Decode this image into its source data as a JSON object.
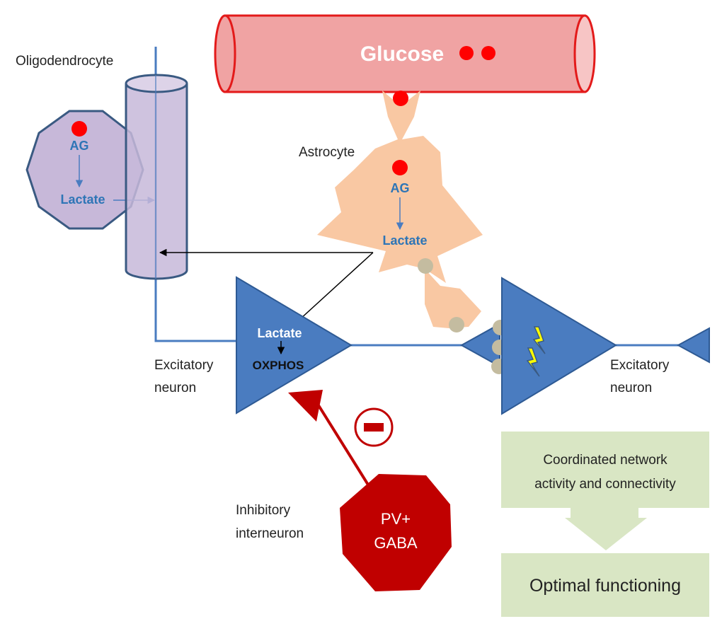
{
  "labels": {
    "glucose": "Glucose",
    "oligodendrocyte": "Oligodendrocyte",
    "astrocyte": "Astrocyte",
    "oligo_ag": "AG",
    "oligo_lactate": "Lactate",
    "astro_ag": "AG",
    "astro_lactate": "Lactate",
    "neuron_lactate": "Lactate",
    "oxphos": "OXPHOS",
    "excitatory_left_1": "Excitatory",
    "excitatory_left_2": "neuron",
    "excitatory_right_1": "Excitatory",
    "excitatory_right_2": "neuron",
    "inhibitory_1": "Inhibitory",
    "inhibitory_2": "interneuron",
    "pv_1": "PV+",
    "pv_2": "GABA",
    "box1_line1": "Coordinated network",
    "box1_line2": "activity and connectivity",
    "box2": "Optimal functioning"
  },
  "colors": {
    "vessel_fill": "#f0a3a3",
    "vessel_stroke": "#e31a1a",
    "glucose_dot": "#ff0000",
    "astrocyte": "#f9c8a3",
    "oligo_fill": "#c7b8d9",
    "oligo_stroke": "#3a5a82",
    "neuron_fill": "#4a7cc0",
    "neuron_stroke": "#2e5a94",
    "interneuron": "#c00000",
    "box_fill": "#d9e6c4",
    "vesicle": "#c4bca0",
    "lightning": "#ffff00"
  }
}
